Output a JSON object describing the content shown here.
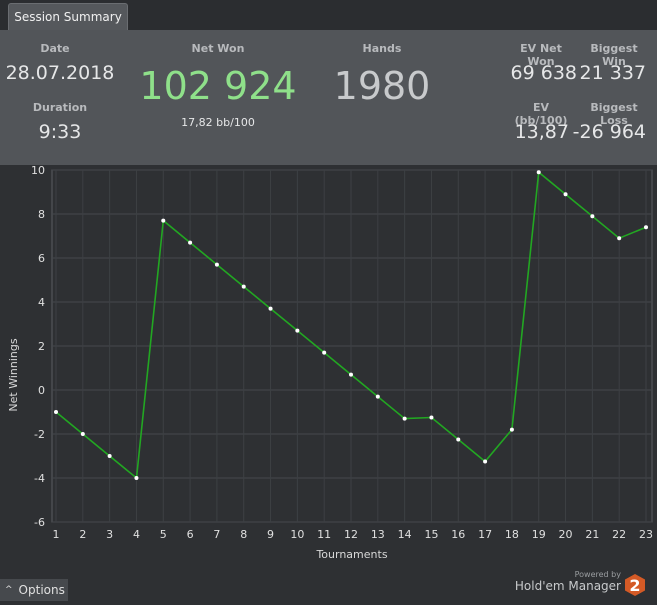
{
  "tab": {
    "label": "Session Summary"
  },
  "summary": {
    "date_label": "Date",
    "date_value": "28.07.2018",
    "duration_label": "Duration",
    "duration_value": "9:33",
    "net_won_label": "Net Won",
    "net_won_value": "102 924",
    "net_won_sub": "17,82 bb/100",
    "hands_label": "Hands",
    "hands_value": "1980",
    "ev_net_won_label": "EV Net Won",
    "ev_net_won_value": "69 638",
    "biggest_win_label": "Biggest Win",
    "biggest_win_value": "21 337",
    "ev_bb_label": "EV (bb/100)",
    "ev_bb_value": "13,87",
    "biggest_loss_label": "Biggest Loss",
    "biggest_loss_value": "-26 964"
  },
  "colors": {
    "net_won": "#8fe08a",
    "line": "#22a722",
    "point": "#ffffff"
  },
  "chart_data": {
    "type": "line",
    "xlabel": "Tournaments",
    "ylabel": "Net Winnings",
    "ylim": [
      -6,
      10
    ],
    "yticks": [
      -6,
      -4,
      -2,
      0,
      2,
      4,
      6,
      8,
      10
    ],
    "grid": true,
    "x": [
      1,
      2,
      3,
      4,
      5,
      6,
      7,
      8,
      9,
      10,
      11,
      12,
      13,
      14,
      15,
      16,
      17,
      18,
      19,
      20,
      21,
      22,
      23
    ],
    "series": [
      {
        "values": [
          -1,
          -2,
          -3,
          -4,
          7.7,
          6.7,
          5.7,
          4.7,
          3.7,
          2.7,
          1.7,
          0.7,
          -0.3,
          -1.3,
          -1.25,
          -2.25,
          -3.25,
          -1.8,
          9.9,
          8.9,
          7.9,
          6.9,
          7.4
        ]
      }
    ]
  },
  "footer": {
    "options_label": "Options",
    "powered_by": "Powered by",
    "brand": "Hold'em Manager",
    "badge": "2"
  }
}
